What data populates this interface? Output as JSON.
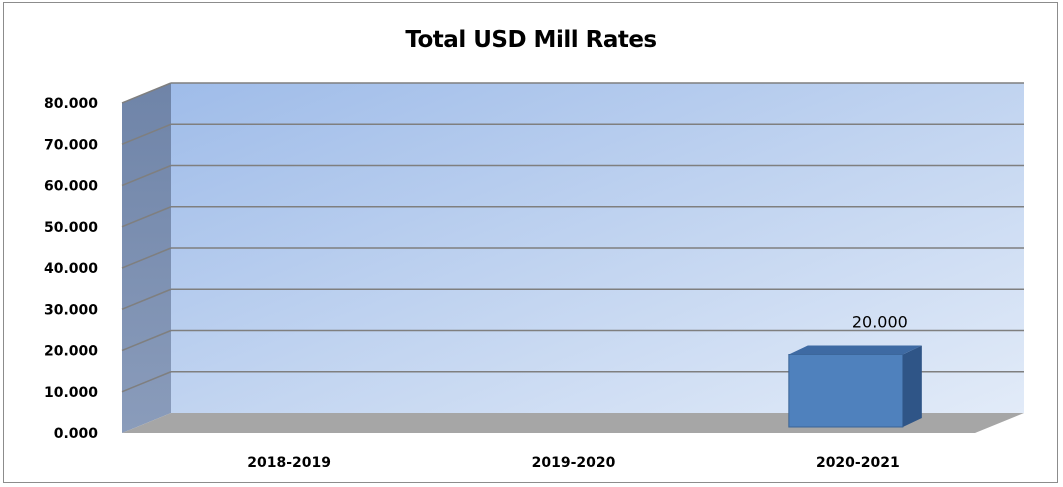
{
  "chart_data": {
    "type": "bar",
    "title": "Total USD Mill Rates",
    "xlabel": "",
    "ylabel": "",
    "categories": [
      "2018-2019",
      "2019-2020",
      "2020-2021"
    ],
    "series": [
      {
        "values": [
          0,
          0,
          20.0
        ],
        "data_labels": [
          "",
          "",
          "20.000"
        ]
      }
    ],
    "ylim": [
      0,
      80
    ],
    "yticks": [
      "0.000",
      "10.000",
      "20.000",
      "30.000",
      "40.000",
      "50.000",
      "60.000",
      "70.000",
      "80.000"
    ],
    "grid": true,
    "legend": "none",
    "style": "3d",
    "colors": {
      "bar": "#4f81bd",
      "floor": "#a6a6a6",
      "gridline": "#7f7f7f"
    }
  }
}
